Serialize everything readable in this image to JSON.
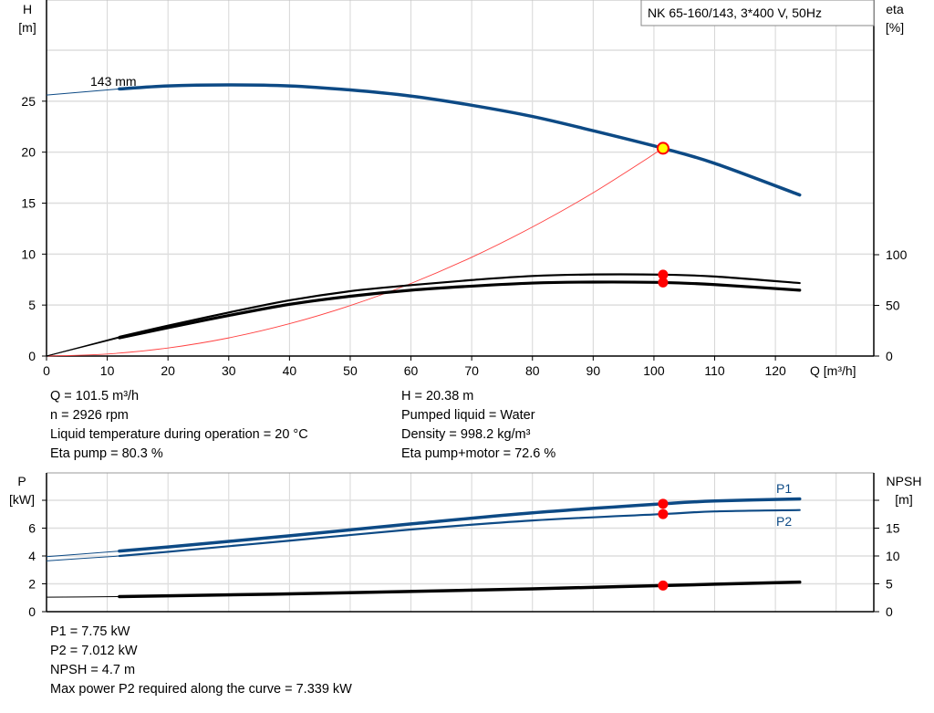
{
  "chart_data": [
    {
      "type": "line",
      "title": "NK 65-160/143, 3*400 V, 50Hz",
      "xlabel": "Q [m³/h]",
      "ylabel_left": [
        "H",
        "[m]"
      ],
      "ylabel_right": [
        "eta",
        "[%]"
      ],
      "xlim": [
        0,
        130
      ],
      "ylim_left": [
        0,
        30
      ],
      "ylim_right": [
        0,
        100
      ],
      "x_ticks": [
        0,
        10,
        20,
        30,
        40,
        50,
        60,
        70,
        80,
        90,
        100,
        110,
        120
      ],
      "y_ticks_left": [
        0,
        5,
        10,
        15,
        20,
        25
      ],
      "y_ticks_right": [
        0,
        50,
        100
      ],
      "grid": true,
      "series": [
        {
          "name": "143 mm",
          "axis": "left",
          "color": "#0d4a85",
          "x": [
            0,
            12,
            20,
            30,
            40,
            50,
            60,
            70,
            80,
            90,
            101.5,
            110,
            124
          ],
          "y": [
            25.6,
            26.2,
            26.5,
            26.6,
            26.5,
            26.1,
            25.5,
            24.6,
            23.5,
            22.1,
            20.38,
            18.9,
            15.8
          ]
        },
        {
          "axis": "right",
          "color": "#000000",
          "x": [
            0,
            12,
            20,
            30,
            40,
            50,
            60,
            70,
            80,
            90,
            101.5,
            110,
            124
          ],
          "y": [
            0,
            19,
            30,
            43,
            55,
            64,
            70,
            75,
            79,
            80.5,
            80.3,
            78.5,
            72
          ]
        },
        {
          "axis": "right",
          "color": "#000000",
          "x": [
            0,
            12,
            20,
            30,
            40,
            50,
            60,
            70,
            80,
            90,
            101.5,
            110,
            124
          ],
          "y": [
            0,
            18,
            28,
            40,
            51,
            59,
            65,
            69,
            72,
            73,
            72.6,
            70.5,
            65
          ]
        },
        {
          "axis": "left",
          "color": "#ff0000",
          "x": [
            0,
            10,
            20,
            30,
            40,
            50,
            60,
            70,
            80,
            90,
            101.5
          ],
          "y": [
            0,
            0.2,
            0.79,
            1.78,
            3.17,
            4.95,
            7.12,
            9.69,
            12.66,
            16.02,
            20.38
          ]
        }
      ],
      "duty_point": {
        "Q": 101.5,
        "H": 20.38,
        "eta_pump": 80.3,
        "eta_pump_motor": 72.6
      }
    },
    {
      "type": "line",
      "ylabel_left": [
        "P",
        "[kW]"
      ],
      "ylabel_right": [
        "NPSH",
        "[m]"
      ],
      "xlim": [
        0,
        130
      ],
      "ylim_left": [
        0,
        10
      ],
      "ylim_right": [
        0,
        25
      ],
      "y_ticks_left": [
        0,
        2,
        4,
        6
      ],
      "y_ticks_right": [
        0,
        5,
        10,
        15
      ],
      "grid": true,
      "series": [
        {
          "name": "P1",
          "axis": "left",
          "color": "#0d4a85",
          "x": [
            0,
            12,
            20,
            40,
            60,
            80,
            101.5,
            110,
            124
          ],
          "y": [
            3.95,
            4.35,
            4.65,
            5.45,
            6.3,
            7.1,
            7.75,
            7.95,
            8.1
          ]
        },
        {
          "name": "P2",
          "axis": "left",
          "color": "#0d4a85",
          "x": [
            0,
            12,
            20,
            40,
            60,
            80,
            101.5,
            110,
            124
          ],
          "y": [
            3.65,
            4.0,
            4.3,
            5.1,
            5.9,
            6.55,
            7.012,
            7.2,
            7.3
          ]
        },
        {
          "name": "NPSH",
          "axis": "right",
          "color": "#000000",
          "x": [
            0,
            12,
            40,
            80,
            101.5,
            124
          ],
          "y": [
            2.6,
            2.7,
            3.2,
            4.1,
            4.7,
            5.3
          ]
        }
      ]
    }
  ],
  "info_top_left": [
    "Q = 101.5 m³/h",
    "n = 2926 rpm",
    "Liquid temperature during operation = 20 °C",
    "Eta pump = 80.3 %"
  ],
  "info_top_right": [
    "H = 20.38 m",
    "Pumped liquid = Water",
    "Density = 998.2 kg/m³",
    "Eta pump+motor = 72.6 %"
  ],
  "info_bottom": [
    "P1 = 7.75 kW",
    "P2 = 7.012 kW",
    "NPSH = 4.7 m",
    "Max power P2 required along the curve = 7.339 kW"
  ]
}
